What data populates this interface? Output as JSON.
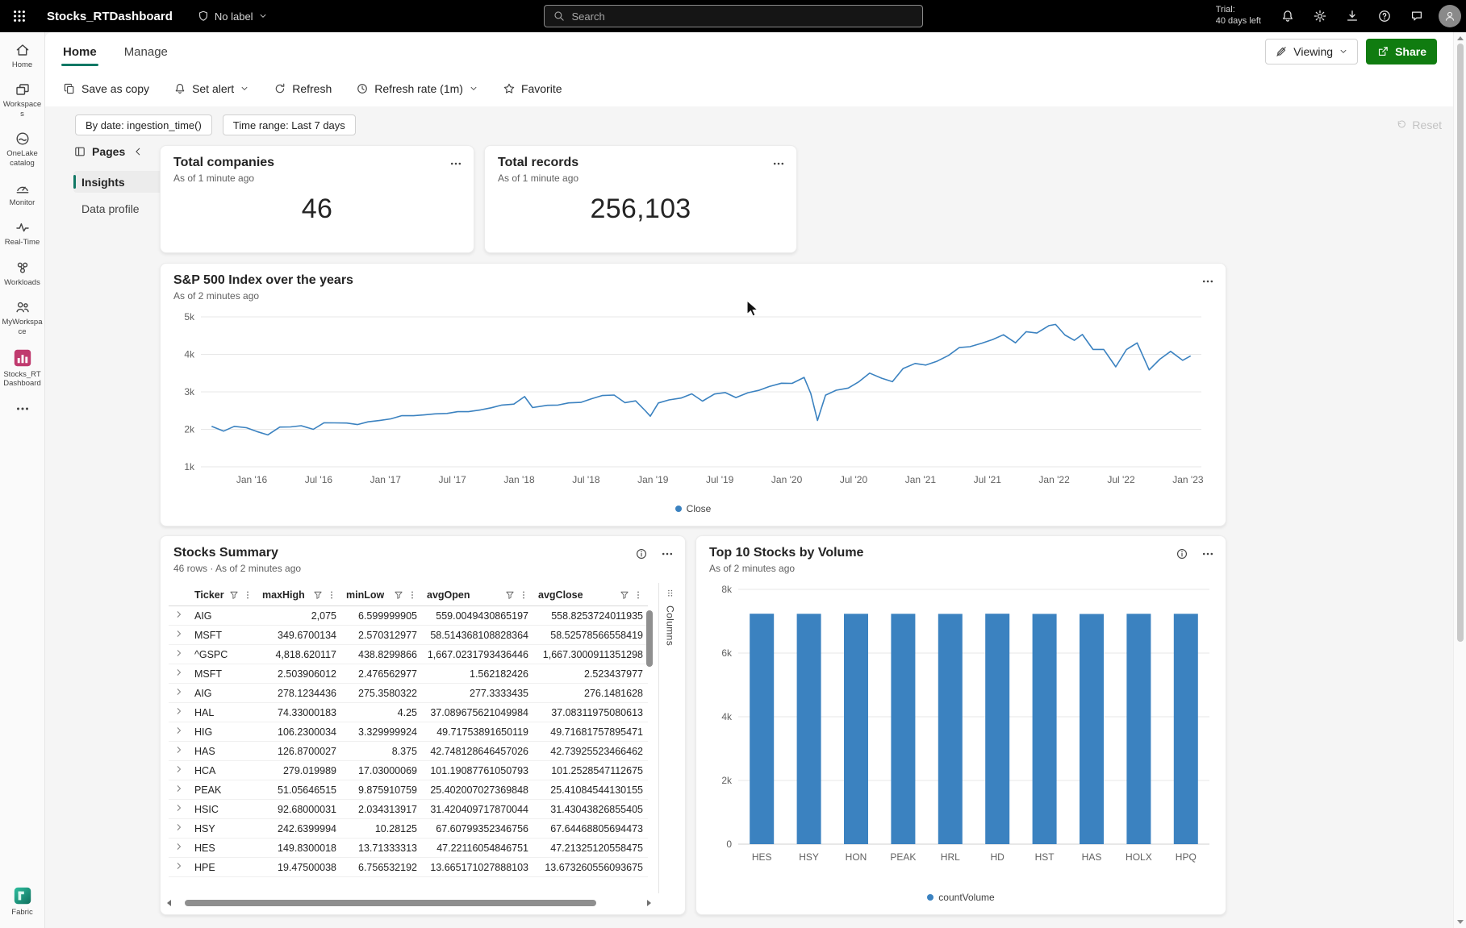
{
  "colors": {
    "accent": "#117865",
    "chart_blue": "#3b82c0",
    "share_green": "#107c10",
    "tile_pink": "#c03a6e",
    "topbar_bg": "#000000"
  },
  "topbar": {
    "app_title": "Stocks_RTDashboard",
    "label_button": "No label",
    "search_placeholder": "Search",
    "trial_label": "Trial:",
    "trial_value": "40 days left"
  },
  "sidebar": {
    "items": [
      {
        "id": "home",
        "label": "Home",
        "icon": "home"
      },
      {
        "id": "workspaces",
        "label": "Workspaces",
        "icon": "workspaces"
      },
      {
        "id": "onelake-catalog",
        "label": "OneLake catalog",
        "icon": "onelake"
      },
      {
        "id": "monitor",
        "label": "Monitor",
        "icon": "monitor"
      },
      {
        "id": "real-time",
        "label": "Real-Time",
        "icon": "realtime"
      },
      {
        "id": "workloads",
        "label": "Workloads",
        "icon": "workloads"
      },
      {
        "id": "myworkspace",
        "label": "MyWorkspace",
        "icon": "people"
      },
      {
        "id": "stocks-rtdashboard",
        "label": "Stocks_RTDashboard",
        "icon": "stockstile"
      },
      {
        "id": "more",
        "label": "",
        "icon": "more"
      }
    ],
    "footer_label": "Fabric"
  },
  "ribbon": {
    "tabs": [
      {
        "id": "home",
        "label": "Home",
        "active": true
      },
      {
        "id": "manage",
        "label": "Manage",
        "active": false
      }
    ],
    "viewing_label": "Viewing",
    "share_label": "Share"
  },
  "toolbar": {
    "items": [
      {
        "id": "save-as-copy",
        "label": "Save as copy",
        "icon": "copy",
        "chevron": false
      },
      {
        "id": "set-alert",
        "label": "Set alert",
        "icon": "alert",
        "chevron": true
      },
      {
        "id": "refresh",
        "label": "Refresh",
        "icon": "refresh",
        "chevron": false
      },
      {
        "id": "refresh-rate",
        "label": "Refresh rate (1m)",
        "icon": "clock",
        "chevron": true
      },
      {
        "id": "favorite",
        "label": "Favorite",
        "icon": "star",
        "chevron": false
      }
    ]
  },
  "filters": {
    "pills": [
      {
        "id": "by-date",
        "label": "By date: ingestion_time()"
      },
      {
        "id": "time-range",
        "label": "Time range: Last 7 days"
      }
    ],
    "reset_label": "Reset"
  },
  "pages": {
    "title": "Pages",
    "items": [
      {
        "id": "insights",
        "label": "Insights",
        "active": true
      },
      {
        "id": "data-profile",
        "label": "Data profile",
        "active": false
      }
    ]
  },
  "kpis": [
    {
      "title": "Total companies",
      "subtitle": "As of 1 minute ago",
      "value": "46"
    },
    {
      "title": "Total records",
      "subtitle": "As of 1 minute ago",
      "value": "256,103"
    }
  ],
  "sp500_card": {
    "title": "S&P 500 Index over the years",
    "subtitle": "As of 2 minutes ago",
    "legend": "Close"
  },
  "stocks_card": {
    "title": "Stocks Summary",
    "subtitle": "46 rows · As of 2 minutes ago",
    "columns_strip": "Columns"
  },
  "top10_card": {
    "title": "Top 10 Stocks by Volume",
    "subtitle": "As of 2 minutes ago",
    "legend": "countVolume"
  },
  "table": {
    "headers": [
      "Ticker",
      "maxHigh",
      "minLow",
      "avgOpen",
      "avgClose"
    ],
    "rows": [
      [
        "AIG",
        "2,075",
        "6.599999905",
        "559.0049430865197",
        "558.8253724011935"
      ],
      [
        "MSFT",
        "349.6700134",
        "2.570312977",
        "58.514368108828364",
        "58.52578566558419"
      ],
      [
        "^GSPC",
        "4,818.620117",
        "438.8299866",
        "1,667.0231793436446",
        "1,667.3000911351298"
      ],
      [
        "MSFT",
        "2.503906012",
        "2.476562977",
        "1.562182426",
        "2.523437977"
      ],
      [
        "AIG",
        "278.1234436",
        "275.3580322",
        "277.3333435",
        "276.1481628"
      ],
      [
        "HAL",
        "74.33000183",
        "4.25",
        "37.089675621049984",
        "37.08311975080613"
      ],
      [
        "HIG",
        "106.2300034",
        "3.329999924",
        "49.71753891650119",
        "49.71681757895471"
      ],
      [
        "HAS",
        "126.8700027",
        "8.375",
        "42.748128646457026",
        "42.73925523466462"
      ],
      [
        "HCA",
        "279.019989",
        "17.03000069",
        "101.19087761050793",
        "101.2528547112675"
      ],
      [
        "PEAK",
        "51.05646515",
        "9.875910759",
        "25.402007027369848",
        "25.41084544130155"
      ],
      [
        "HSIC",
        "92.68000031",
        "2.034313917",
        "31.420409717870044",
        "31.43043826855405"
      ],
      [
        "HSY",
        "242.6399994",
        "10.28125",
        "67.60799352346756",
        "67.64468805694473"
      ],
      [
        "HES",
        "149.8300018",
        "13.71333313",
        "47.22116054846751",
        "47.21325120558475"
      ],
      [
        "HPE",
        "19.47500038",
        "6.756532192",
        "13.665171027888103",
        "13.673260556093675"
      ]
    ]
  },
  "chart_data": [
    {
      "type": "line",
      "title": "S&P 500 Index over the years",
      "ylabel": "Close",
      "legend": [
        "Close"
      ],
      "legend_position": "bottom",
      "grid": "horizontal",
      "color": "#3b82c0",
      "xlim": [
        2015.62,
        2023.1
      ],
      "ylim": [
        1000,
        5000
      ],
      "yticks": [
        {
          "v": 1000,
          "label": "1k"
        },
        {
          "v": 2000,
          "label": "2k"
        },
        {
          "v": 3000,
          "label": "3k"
        },
        {
          "v": 4000,
          "label": "4k"
        },
        {
          "v": 5000,
          "label": "5k"
        }
      ],
      "xticks": [
        {
          "v": 2016,
          "label": "Jan '16"
        },
        {
          "v": 2016.5,
          "label": "Jul '16"
        },
        {
          "v": 2017,
          "label": "Jan '17"
        },
        {
          "v": 2017.5,
          "label": "Jul '17"
        },
        {
          "v": 2018,
          "label": "Jan '18"
        },
        {
          "v": 2018.5,
          "label": "Jul '18"
        },
        {
          "v": 2019,
          "label": "Jan '19"
        },
        {
          "v": 2019.5,
          "label": "Jul '19"
        },
        {
          "v": 2020,
          "label": "Jan '20"
        },
        {
          "v": 2020.5,
          "label": "Jul '20"
        },
        {
          "v": 2021,
          "label": "Jan '21"
        },
        {
          "v": 2021.5,
          "label": "Jul '21"
        },
        {
          "v": 2022,
          "label": "Jan '22"
        },
        {
          "v": 2022.5,
          "label": "Jul '22"
        },
        {
          "v": 2023,
          "label": "Jan '23"
        }
      ],
      "points": [
        [
          2015.7,
          2080
        ],
        [
          2015.79,
          1952
        ],
        [
          2015.87,
          2079
        ],
        [
          2015.96,
          2044
        ],
        [
          2016.04,
          1940
        ],
        [
          2016.12,
          1852
        ],
        [
          2016.21,
          2060
        ],
        [
          2016.29,
          2065
        ],
        [
          2016.37,
          2097
        ],
        [
          2016.46,
          2001
        ],
        [
          2016.54,
          2174
        ],
        [
          2016.62,
          2171
        ],
        [
          2016.71,
          2168
        ],
        [
          2016.79,
          2126
        ],
        [
          2016.87,
          2199
        ],
        [
          2016.96,
          2239
        ],
        [
          2017.04,
          2279
        ],
        [
          2017.12,
          2364
        ],
        [
          2017.21,
          2363
        ],
        [
          2017.29,
          2384
        ],
        [
          2017.37,
          2412
        ],
        [
          2017.46,
          2423
        ],
        [
          2017.54,
          2470
        ],
        [
          2017.62,
          2472
        ],
        [
          2017.71,
          2519
        ],
        [
          2017.79,
          2575
        ],
        [
          2017.87,
          2648
        ],
        [
          2017.96,
          2674
        ],
        [
          2018.04,
          2873
        ],
        [
          2018.1,
          2581
        ],
        [
          2018.21,
          2641
        ],
        [
          2018.29,
          2648
        ],
        [
          2018.37,
          2705
        ],
        [
          2018.46,
          2718
        ],
        [
          2018.54,
          2816
        ],
        [
          2018.62,
          2902
        ],
        [
          2018.71,
          2914
        ],
        [
          2018.79,
          2712
        ],
        [
          2018.87,
          2760
        ],
        [
          2018.94,
          2506
        ],
        [
          2018.98,
          2351
        ],
        [
          2019.04,
          2704
        ],
        [
          2019.12,
          2784
        ],
        [
          2019.21,
          2834
        ],
        [
          2019.29,
          2946
        ],
        [
          2019.37,
          2752
        ],
        [
          2019.46,
          2942
        ],
        [
          2019.54,
          2980
        ],
        [
          2019.62,
          2847
        ],
        [
          2019.71,
          2977
        ],
        [
          2019.79,
          3038
        ],
        [
          2019.87,
          3141
        ],
        [
          2019.96,
          3231
        ],
        [
          2020.04,
          3226
        ],
        [
          2020.13,
          3386
        ],
        [
          2020.18,
          2954
        ],
        [
          2020.23,
          2237
        ],
        [
          2020.29,
          2912
        ],
        [
          2020.37,
          3044
        ],
        [
          2020.46,
          3100
        ],
        [
          2020.54,
          3271
        ],
        [
          2020.62,
          3500
        ],
        [
          2020.71,
          3363
        ],
        [
          2020.79,
          3270
        ],
        [
          2020.87,
          3622
        ],
        [
          2020.96,
          3756
        ],
        [
          2021.04,
          3714
        ],
        [
          2021.12,
          3811
        ],
        [
          2021.21,
          3973
        ],
        [
          2021.29,
          4181
        ],
        [
          2021.37,
          4204
        ],
        [
          2021.46,
          4298
        ],
        [
          2021.54,
          4395
        ],
        [
          2021.62,
          4523
        ],
        [
          2021.71,
          4308
        ],
        [
          2021.79,
          4605
        ],
        [
          2021.87,
          4567
        ],
        [
          2021.96,
          4766
        ],
        [
          2022.01,
          4797
        ],
        [
          2022.08,
          4516
        ],
        [
          2022.15,
          4374
        ],
        [
          2022.21,
          4530
        ],
        [
          2022.29,
          4132
        ],
        [
          2022.37,
          4132
        ],
        [
          2022.46,
          3667
        ],
        [
          2022.54,
          4130
        ],
        [
          2022.62,
          4305
        ],
        [
          2022.71,
          3586
        ],
        [
          2022.79,
          3872
        ],
        [
          2022.87,
          4080
        ],
        [
          2022.96,
          3840
        ],
        [
          2023.02,
          3960
        ]
      ]
    },
    {
      "type": "bar",
      "title": "Top 10 Stocks by Volume",
      "ylabel": "countVolume",
      "legend": [
        "countVolume"
      ],
      "legend_position": "bottom",
      "grid": "horizontal",
      "color": "#3b82c0",
      "categories": [
        "HES",
        "HSY",
        "HON",
        "PEAK",
        "HRL",
        "HD",
        "HST",
        "HAS",
        "HOLX",
        "HPQ"
      ],
      "values": [
        7236,
        7232,
        7234,
        7233,
        7230,
        7235,
        7231,
        7229,
        7234,
        7232
      ],
      "ylim": [
        0,
        8000
      ],
      "yticks": [
        {
          "v": 0,
          "label": "0"
        },
        {
          "v": 2000,
          "label": "2k"
        },
        {
          "v": 4000,
          "label": "4k"
        },
        {
          "v": 6000,
          "label": "6k"
        },
        {
          "v": 8000,
          "label": "8k"
        }
      ]
    }
  ]
}
